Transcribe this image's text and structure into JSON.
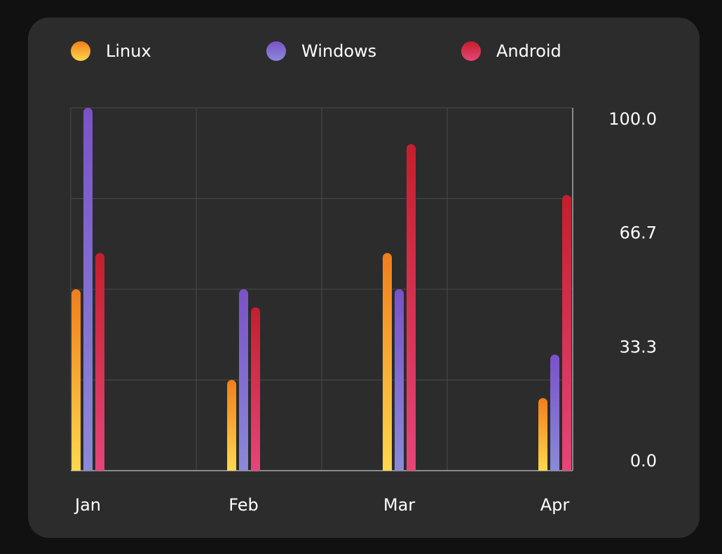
{
  "colors": {
    "background": "#111111",
    "card": "#2c2c2c",
    "grid": "#4a4a4a",
    "text": "#ffffff"
  },
  "legend": [
    {
      "label": "Linux",
      "icon": "legend-dot",
      "gradient": [
        "#f07e1b",
        "#ffd84d"
      ]
    },
    {
      "label": "Windows",
      "icon": "legend-dot",
      "gradient": [
        "#7a52c8",
        "#8a8ad8"
      ]
    },
    {
      "label": "Android",
      "icon": "legend-dot",
      "gradient": [
        "#c41f2c",
        "#e6457a"
      ]
    }
  ],
  "chart_data": {
    "type": "bar",
    "categories": [
      "Jan",
      "Feb",
      "Mar",
      "Apr"
    ],
    "series": [
      {
        "name": "Linux",
        "values": [
          50,
          25,
          60,
          20
        ],
        "gradient": [
          "#f07e1b",
          "#ffd84d"
        ]
      },
      {
        "name": "Windows",
        "values": [
          100,
          50,
          50,
          32
        ],
        "gradient": [
          "#7a52c8",
          "#8a8ad8"
        ]
      },
      {
        "name": "Android",
        "values": [
          60,
          45,
          90,
          76
        ],
        "gradient": [
          "#c41f2c",
          "#e6457a"
        ]
      }
    ],
    "ylim": [
      0,
      100
    ],
    "y_ticks": [
      "100.0",
      "66.7",
      "33.3",
      "0.0"
    ],
    "y_axis_side": "right",
    "grid": true,
    "legend_position": "top"
  }
}
